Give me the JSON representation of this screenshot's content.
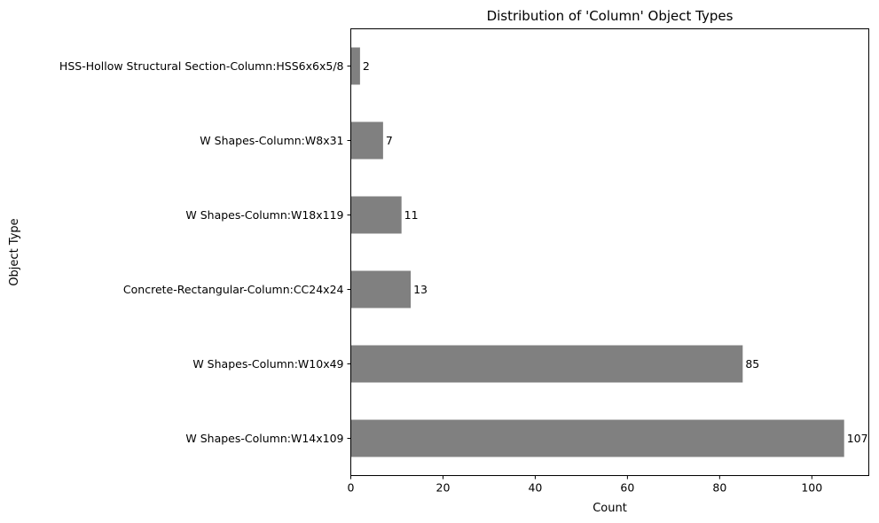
{
  "chart_data": {
    "type": "bar",
    "orientation": "horizontal",
    "title": "Distribution of 'Column' Object Types",
    "xlabel": "Count",
    "ylabel": "Object Type",
    "categories": [
      "W Shapes-Column:W14x109",
      "W Shapes-Column:W10x49",
      "Concrete-Rectangular-Column:CC24x24",
      "W Shapes-Column:W18x119",
      "W Shapes-Column:W8x31",
      "HSS-Hollow Structural Section-Column:HSS6x6x5/8"
    ],
    "values": [
      107,
      85,
      13,
      11,
      7,
      2
    ],
    "value_labels": [
      "107",
      "85",
      "13",
      "11",
      "7",
      "2"
    ],
    "xlim": [
      0,
      112.35
    ],
    "xticks": [
      0,
      20,
      40,
      60,
      80,
      100
    ],
    "xtick_labels": [
      "0",
      "20",
      "40",
      "60",
      "80",
      "100"
    ],
    "bar_color": "#808080",
    "grid": false,
    "legend": "none"
  }
}
